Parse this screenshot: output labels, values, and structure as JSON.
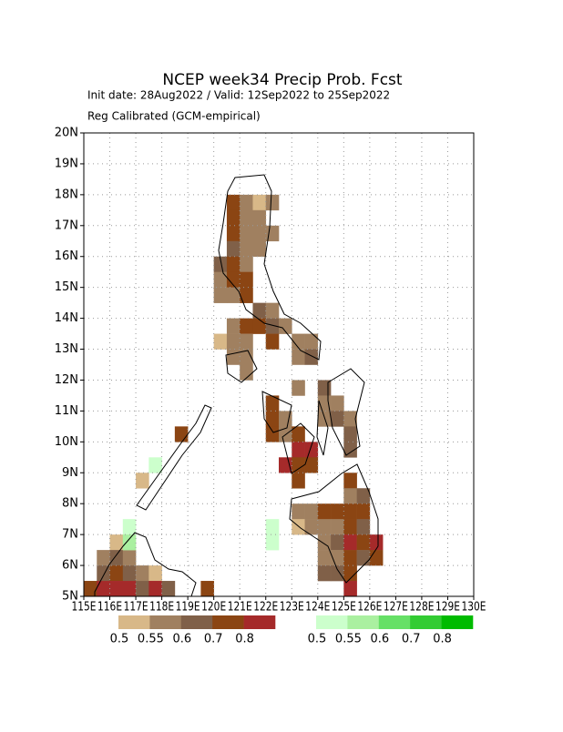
{
  "chart_data": {
    "type": "map",
    "title": "NCEP week34 Precip Prob. Fcst",
    "subtitle": [
      "Init date: 28Aug2022 / Valid: 12Sep2022 to 25Sep2022",
      "Reg Calibrated (GCM-empirical)"
    ],
    "xlim": [
      115,
      130
    ],
    "ylim": [
      5,
      20
    ],
    "xticks": [
      {
        "value": 115,
        "label": "115E"
      },
      {
        "value": 116,
        "label": "116E"
      },
      {
        "value": 117,
        "label": "117E"
      },
      {
        "value": 118,
        "label": "118E"
      },
      {
        "value": 119,
        "label": "119E"
      },
      {
        "value": 120,
        "label": "120E"
      },
      {
        "value": 121,
        "label": "121E"
      },
      {
        "value": 122,
        "label": "122E"
      },
      {
        "value": 123,
        "label": "123E"
      },
      {
        "value": 124,
        "label": "124E"
      },
      {
        "value": 125,
        "label": "125E"
      },
      {
        "value": 126,
        "label": "126E"
      },
      {
        "value": 127,
        "label": "127E"
      },
      {
        "value": 128,
        "label": "128E"
      },
      {
        "value": 129,
        "label": "129E"
      },
      {
        "value": 130,
        "label": "130E"
      }
    ],
    "yticks": [
      {
        "value": 5,
        "label": "5N"
      },
      {
        "value": 6,
        "label": "6N"
      },
      {
        "value": 7,
        "label": "7N"
      },
      {
        "value": 8,
        "label": "8N"
      },
      {
        "value": 9,
        "label": "9N"
      },
      {
        "value": 10,
        "label": "10N"
      },
      {
        "value": 11,
        "label": "11N"
      },
      {
        "value": 12,
        "label": "12N"
      },
      {
        "value": 13,
        "label": "13N"
      },
      {
        "value": 14,
        "label": "14N"
      },
      {
        "value": 15,
        "label": "15N"
      },
      {
        "value": 16,
        "label": "16N"
      },
      {
        "value": 17,
        "label": "17N"
      },
      {
        "value": 18,
        "label": "18N"
      },
      {
        "value": 19,
        "label": "19N"
      },
      {
        "value": 20,
        "label": "20N"
      }
    ],
    "grid": true,
    "legend": {
      "levels": [
        0.5,
        0.55,
        0.6,
        0.7,
        0.8
      ],
      "below_colors": [
        "#d8b888",
        "#a08060",
        "#806048",
        "#8b4513",
        "#a52a2a"
      ],
      "above_colors": [
        "#ccffcc",
        "#aaf0a0",
        "#66e066",
        "#33cc33",
        "#00bb00"
      ]
    },
    "below_normal": [
      [
        120.5,
        17.5,
        0.7
      ],
      [
        121,
        17.5,
        0.55
      ],
      [
        121.5,
        17.5,
        0.5
      ],
      [
        122,
        17.5,
        0.55
      ],
      [
        120.5,
        17,
        0.7
      ],
      [
        121,
        17,
        0.55
      ],
      [
        121.5,
        17,
        0.55
      ],
      [
        120.5,
        16.5,
        0.7
      ],
      [
        121,
        16.5,
        0.55
      ],
      [
        121.5,
        16.5,
        0.55
      ],
      [
        122,
        16.5,
        0.55
      ],
      [
        120.5,
        16,
        0.6
      ],
      [
        121,
        16,
        0.55
      ],
      [
        121.5,
        16,
        0.55
      ],
      [
        120,
        15.5,
        0.6
      ],
      [
        120.5,
        15.5,
        0.7
      ],
      [
        121,
        15.5,
        0.55
      ],
      [
        120,
        15,
        0.55
      ],
      [
        120.5,
        15,
        0.7
      ],
      [
        121,
        15,
        0.7
      ],
      [
        120,
        14.5,
        0.55
      ],
      [
        120.5,
        14.5,
        0.55
      ],
      [
        121,
        14.5,
        0.7
      ],
      [
        121.5,
        14,
        0.6
      ],
      [
        122,
        14,
        0.55
      ],
      [
        120.5,
        13.5,
        0.55
      ],
      [
        121,
        13.5,
        0.7
      ],
      [
        121.5,
        13.5,
        0.7
      ],
      [
        122,
        13.5,
        0.6
      ],
      [
        122.5,
        13.5,
        0.55
      ],
      [
        120,
        13,
        0.5
      ],
      [
        120.5,
        13,
        0.55
      ],
      [
        121,
        13,
        0.55
      ],
      [
        122,
        13,
        0.7
      ],
      [
        123,
        13,
        0.55
      ],
      [
        123.5,
        13,
        0.55
      ],
      [
        120.5,
        12.5,
        0.55
      ],
      [
        121,
        12.5,
        0.55
      ],
      [
        123,
        12.5,
        0.55
      ],
      [
        123.5,
        12.5,
        0.6
      ],
      [
        121,
        12,
        0.55
      ],
      [
        123,
        11.5,
        0.55
      ],
      [
        124,
        11.5,
        0.6
      ],
      [
        122,
        11,
        0.7
      ],
      [
        124,
        11,
        0.55
      ],
      [
        124.5,
        11,
        0.55
      ],
      [
        122,
        10.5,
        0.7
      ],
      [
        122.5,
        10.5,
        0.55
      ],
      [
        124,
        10.5,
        0.55
      ],
      [
        124.5,
        10.5,
        0.6
      ],
      [
        125,
        10.5,
        0.55
      ],
      [
        122,
        10,
        0.7
      ],
      [
        122.5,
        10,
        0.55
      ],
      [
        123,
        10,
        0.7
      ],
      [
        125,
        10,
        0.6
      ],
      [
        123,
        9.5,
        0.8
      ],
      [
        123.5,
        9.5,
        0.8
      ],
      [
        125,
        9.5,
        0.6
      ],
      [
        122.5,
        9,
        0.8
      ],
      [
        123,
        9,
        0.7
      ],
      [
        123.5,
        9,
        0.7
      ],
      [
        123,
        8.5,
        0.7
      ],
      [
        125,
        8.5,
        0.7
      ],
      [
        125,
        8,
        0.55
      ],
      [
        125.5,
        8,
        0.6
      ],
      [
        123,
        7.5,
        0.55
      ],
      [
        123.5,
        7.5,
        0.55
      ],
      [
        124,
        7.5,
        0.7
      ],
      [
        124.5,
        7.5,
        0.7
      ],
      [
        125,
        7.5,
        0.7
      ],
      [
        125.5,
        7.5,
        0.7
      ],
      [
        123,
        7,
        0.5
      ],
      [
        123.5,
        7,
        0.55
      ],
      [
        124,
        7,
        0.55
      ],
      [
        124.5,
        7,
        0.55
      ],
      [
        125,
        7,
        0.7
      ],
      [
        125.5,
        7,
        0.6
      ],
      [
        124,
        6.5,
        0.55
      ],
      [
        124.5,
        6.5,
        0.6
      ],
      [
        125,
        6.5,
        0.8
      ],
      [
        125.5,
        6.5,
        0.7
      ],
      [
        126,
        6.5,
        0.8
      ],
      [
        124,
        6,
        0.55
      ],
      [
        124.5,
        6,
        0.55
      ],
      [
        125,
        6,
        0.7
      ],
      [
        125.5,
        6,
        0.6
      ],
      [
        126,
        6,
        0.7
      ],
      [
        124,
        5.5,
        0.6
      ],
      [
        124.5,
        5.5,
        0.6
      ],
      [
        125,
        5.5,
        0.7
      ],
      [
        125,
        5,
        0.8
      ],
      [
        117,
        8.5,
        0.5
      ],
      [
        118.5,
        10,
        0.7
      ],
      [
        116,
        6.5,
        0.5
      ],
      [
        115.5,
        6,
        0.55
      ],
      [
        116,
        6,
        0.6
      ],
      [
        116.5,
        6,
        0.55
      ],
      [
        115.5,
        5.5,
        0.6
      ],
      [
        116,
        5.5,
        0.7
      ],
      [
        116.5,
        5.5,
        0.6
      ],
      [
        117,
        5.5,
        0.55
      ],
      [
        117.5,
        5.5,
        0.5
      ],
      [
        115,
        5,
        0.7
      ],
      [
        115.5,
        5,
        0.8
      ],
      [
        116,
        5,
        0.8
      ],
      [
        116.5,
        5,
        0.8
      ],
      [
        117,
        5,
        0.6
      ],
      [
        117.5,
        5,
        0.8
      ],
      [
        118,
        5,
        0.6
      ],
      [
        119.5,
        5,
        0.7
      ]
    ],
    "above_normal": [
      [
        122,
        7,
        0.5
      ],
      [
        122,
        6.5,
        0.5
      ],
      [
        117.5,
        9,
        0.5
      ],
      [
        116.5,
        7,
        0.5
      ],
      [
        116.5,
        6.5,
        0.55
      ]
    ]
  }
}
